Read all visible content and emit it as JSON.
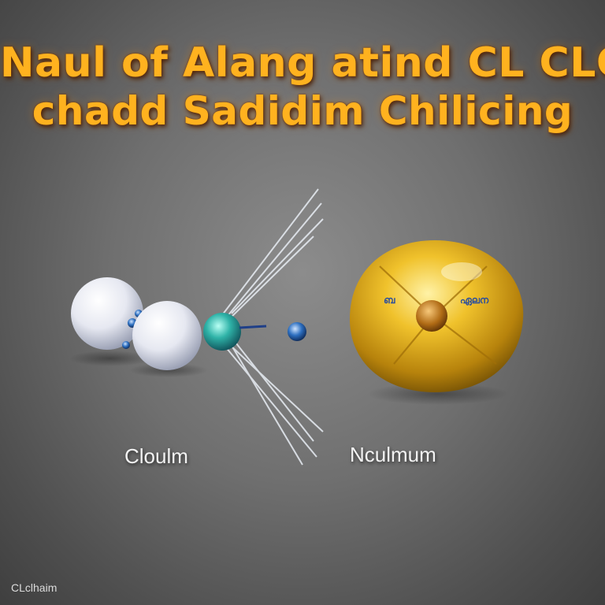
{
  "title": {
    "line1": "Naul of Alang atind CL CLC",
    "line2": "chadd Sadidim Chilicing"
  },
  "labels": {
    "left": "Cloulm",
    "right": "Nculmum"
  },
  "gold_sphere_text": {
    "left": "ബ",
    "right": "ഏലന"
  },
  "watermark": "CLclhaim",
  "colors": {
    "title": "#ffb21f",
    "gold": "#d7a417",
    "pearl": "#eef0f7",
    "teal": "#1fa6a0",
    "blue": "#1f5fb0"
  }
}
